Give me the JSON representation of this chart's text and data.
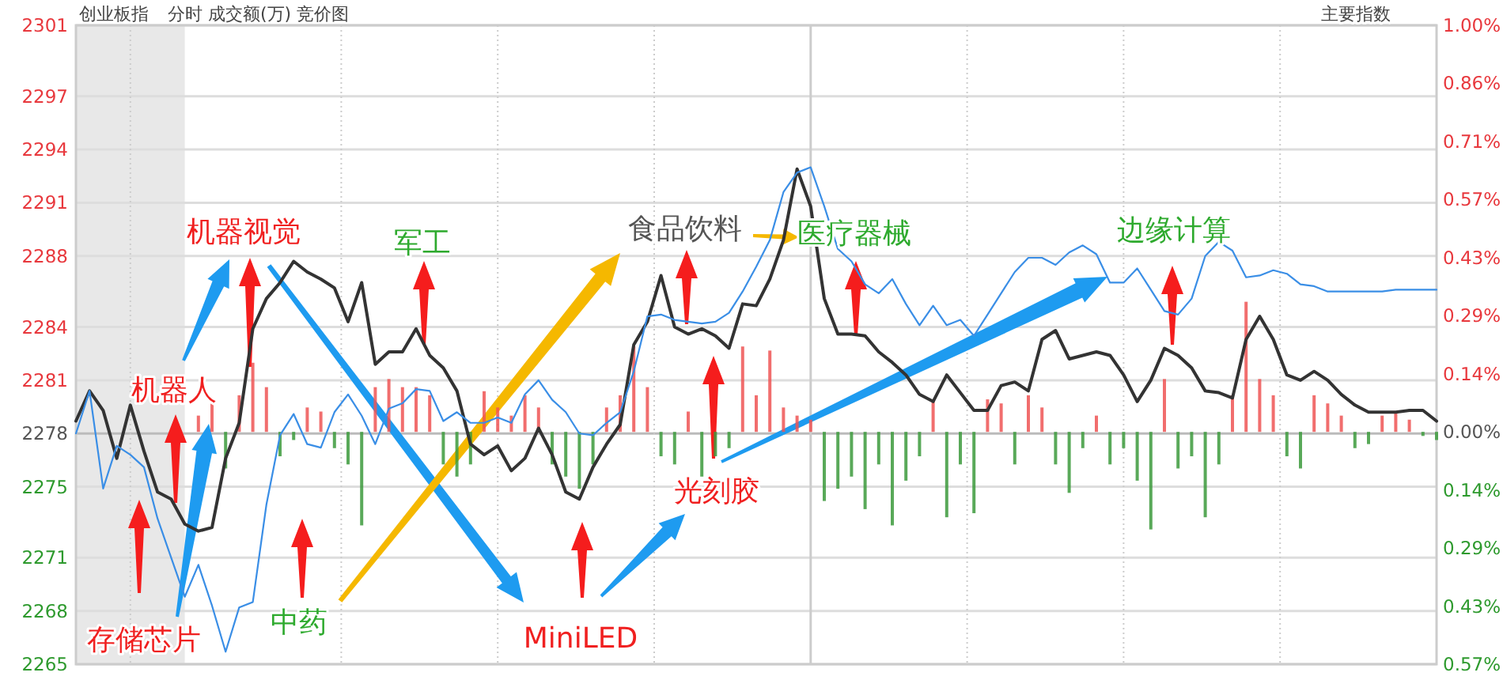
{
  "chart_data": {
    "type": "line",
    "title": "创业板指",
    "subtitle": "分时 成交额(万) 竞价图",
    "annotations": [
      "主要指数",
      "机器视觉",
      "军工",
      "食品饮料",
      "医疗器械",
      "边缘计算",
      "机器人",
      "存储芯片",
      "中药",
      "MiniLED",
      "光刻胶"
    ],
    "categories": [
      null,
      null,
      null,
      null,
      null,
      null,
      null,
      null,
      null,
      null,
      null,
      null,
      null,
      null,
      null,
      null,
      null,
      null,
      null,
      null,
      null,
      null,
      null,
      null,
      null,
      null,
      null,
      null,
      null,
      null,
      null,
      null,
      null,
      null,
      null,
      null,
      null,
      null,
      null,
      null,
      null,
      null,
      null,
      null,
      null,
      null,
      null,
      null,
      null,
      null,
      null,
      null,
      null,
      null,
      null,
      null,
      null,
      null,
      null,
      null,
      null,
      null,
      null,
      null,
      null,
      null,
      null,
      null,
      null,
      null,
      null,
      null,
      null,
      null,
      null,
      null,
      null,
      null,
      null,
      null,
      null,
      null,
      null,
      null,
      null,
      null,
      null,
      null,
      null,
      null,
      null,
      null,
      null,
      null,
      null,
      null,
      null,
      null,
      null,
      null,
      null
    ],
    "series": [
      {
        "color": "#333333",
        "values": [
          2278.7,
          2280.4,
          2279.3,
          2276.6,
          2279.6,
          2277.0,
          2274.7,
          2274.3,
          2272.9,
          2272.5,
          2272.7,
          2276.6,
          2278.6,
          2283.9,
          2285.6,
          2286.5,
          2287.7,
          2287.1,
          2286.7,
          2286.2,
          2284.3,
          2286.5,
          2281.9,
          2282.6,
          2282.6,
          2283.9,
          2282.4,
          2281.7,
          2280.4,
          2277.4,
          2276.8,
          2277.3,
          2275.9,
          2276.6,
          2278.3,
          2276.8,
          2274.7,
          2274.3,
          2276.1,
          2277.4,
          2278.5,
          2283.0,
          2284.3,
          2286.9,
          2284.0,
          2283.6,
          2283.9,
          2283.5,
          2282.8,
          2285.3,
          2285.2,
          2286.7,
          2288.9,
          2292.9,
          2290.8,
          2285.6,
          2283.6,
          2283.6,
          2283.5,
          2282.6,
          2282.0,
          2281.3,
          2280.2,
          2279.8,
          2281.3,
          2280.3,
          2279.3,
          2279.3,
          2280.7,
          2280.9,
          2280.4,
          2283.3,
          2283.8,
          2282.2,
          2282.4,
          2282.6,
          2282.4,
          2281.3,
          2279.8,
          2281.0,
          2282.8,
          2282.4,
          2281.7,
          2280.4,
          2280.3,
          2280.0,
          2283.3,
          2284.6,
          2283.3,
          2281.3,
          2281.0,
          2281.5,
          2281.0,
          2280.2,
          2279.6,
          2279.2,
          2279.2,
          2279.2,
          2279.3,
          2279.3,
          2278.7
        ]
      },
      {
        "color": "#3a8ee6",
        "values": [
          2278.0,
          2280.4,
          2274.9,
          2277.3,
          2276.8,
          2276.1,
          2273.2,
          2271.0,
          2268.8,
          2270.6,
          2268.3,
          2265.7,
          2268.2,
          2268.5,
          2274.0,
          2277.9,
          2279.1,
          2277.4,
          2277.2,
          2279.2,
          2280.2,
          2279.0,
          2277.4,
          2279.4,
          2279.7,
          2280.5,
          2280.4,
          2278.7,
          2279.2,
          2278.6,
          2278.6,
          2278.9,
          2278.6,
          2280.2,
          2281.0,
          2279.9,
          2279.2,
          2278.0,
          2277.9,
          2278.6,
          2279.2,
          2281.5,
          2284.6,
          2284.7,
          2284.4,
          2284.3,
          2284.2,
          2284.3,
          2284.8,
          2286.0,
          2287.4,
          2288.9,
          2291.6,
          2292.7,
          2293.0,
          2290.8,
          2288.4,
          2287.7,
          2286.4,
          2285.9,
          2286.7,
          2285.3,
          2284.1,
          2285.2,
          2284.1,
          2284.4,
          2283.5,
          2284.7,
          2285.9,
          2287.1,
          2287.9,
          2287.9,
          2287.5,
          2288.2,
          2288.6,
          2288.1,
          2286.5,
          2286.5,
          2287.3,
          2286.1,
          2284.9,
          2284.7,
          2285.6,
          2288.0,
          2288.8,
          2288.3,
          2286.8,
          2286.9,
          2287.2,
          2287.0,
          2286.4,
          2286.3,
          2286.0,
          2286.0,
          2286.0,
          2286.0,
          2286.0,
          2286.1,
          2286.1,
          2286.1,
          2286.1
        ]
      },
      {
        "type": "bar",
        "axis": "y2",
        "color": "#ee5555",
        "values": [
          null,
          null,
          null,
          null,
          null,
          null,
          null,
          null,
          null,
          0.04,
          0.07,
          null,
          0.09,
          0.17,
          0.11,
          null,
          null,
          0.06,
          0.05,
          null,
          null,
          null,
          0.11,
          0.13,
          0.11,
          0.11,
          0.09,
          null,
          null,
          null,
          0.1,
          0.06,
          0.04,
          0.09,
          0.06,
          null,
          null,
          null,
          null,
          0.06,
          0.09,
          0.21,
          0.11,
          null,
          null,
          0.05,
          null,
          null,
          null,
          0.21,
          0.09,
          0.2,
          0.06,
          0.04,
          0.03,
          null,
          null,
          null,
          null,
          null,
          null,
          null,
          null,
          0.08,
          null,
          null,
          null,
          0.08,
          0.07,
          null,
          0.09,
          0.06,
          null,
          null,
          null,
          0.04,
          null,
          null,
          null,
          null,
          0.13,
          null,
          null,
          null,
          null,
          0.09,
          0.32,
          0.13,
          0.09,
          null,
          null,
          0.09,
          0.07,
          0.04,
          null,
          null,
          0.04,
          0.05,
          0.03,
          null,
          null
        ]
      },
      {
        "type": "bar",
        "axis": "y2",
        "color": "#3c9a3c",
        "values": [
          null,
          null,
          null,
          null,
          null,
          null,
          null,
          null,
          null,
          null,
          null,
          -0.09,
          null,
          null,
          null,
          -0.06,
          -0.02,
          null,
          null,
          -0.04,
          -0.08,
          -0.23,
          null,
          null,
          null,
          null,
          null,
          -0.08,
          -0.11,
          -0.08,
          null,
          null,
          null,
          null,
          null,
          -0.08,
          -0.11,
          -0.14,
          -0.08,
          null,
          null,
          null,
          null,
          -0.06,
          -0.08,
          null,
          -0.11,
          -0.06,
          -0.04,
          null,
          null,
          null,
          null,
          null,
          null,
          -0.17,
          -0.14,
          -0.11,
          -0.19,
          -0.08,
          -0.23,
          -0.12,
          -0.06,
          null,
          -0.21,
          -0.08,
          -0.2,
          null,
          null,
          -0.08,
          null,
          null,
          -0.08,
          -0.15,
          -0.04,
          null,
          -0.08,
          -0.04,
          -0.12,
          -0.24,
          null,
          -0.09,
          -0.06,
          -0.21,
          -0.08,
          null,
          null,
          null,
          null,
          -0.06,
          -0.09,
          null,
          null,
          null,
          -0.04,
          -0.03,
          null,
          null,
          null,
          -0.01,
          -0.02
        ]
      }
    ],
    "ylim": [
      2265,
      2301
    ],
    "yticks": [
      2265,
      2268,
      2271,
      2275,
      2278,
      2281,
      2284,
      2288,
      2291,
      2294,
      2297,
      2301
    ],
    "y2lim": [
      -0.5714,
      1.0
    ],
    "y2ticks": [
      {
        "value": -0.5714,
        "label": "0.57%"
      },
      {
        "value": -0.4286,
        "label": "0.43%"
      },
      {
        "value": -0.2857,
        "label": "0.29%"
      },
      {
        "value": -0.1429,
        "label": "0.14%"
      },
      {
        "value": 0,
        "label": "0.00%"
      },
      {
        "value": 0.1429,
        "label": "0.14%"
      },
      {
        "value": 0.2857,
        "label": "0.29%"
      },
      {
        "value": 0.4286,
        "label": "0.43%"
      },
      {
        "value": 0.5714,
        "label": "0.57%"
      },
      {
        "value": 0.7143,
        "label": "0.71%"
      },
      {
        "value": 0.8571,
        "label": "0.86%"
      },
      {
        "value": 1.0,
        "label": "1.00%"
      }
    ],
    "grid": true,
    "marker": "none",
    "line_style": "solid"
  }
}
